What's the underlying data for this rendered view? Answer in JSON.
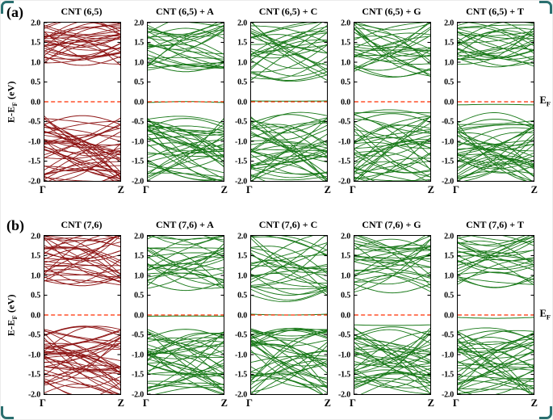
{
  "figure": {
    "row_a_label": "(a)",
    "row_b_label": "(b)",
    "y_axis_label": {
      "pre": "E-E",
      "sub": "F",
      "post": " (eV)"
    },
    "fermi_label": {
      "pre": "E",
      "sub": "F"
    },
    "colors": {
      "pristine": "#8e1414",
      "adsorbed": "#1a7a1a",
      "fermi": "#ff2d00",
      "axis": "#000000",
      "accent": "#2a6f6f"
    }
  },
  "chart_data": {
    "type": "line",
    "subtype": "electronic-band-structure",
    "x_tick_labels": [
      "Γ",
      "Z"
    ],
    "ylim": [
      -2.0,
      2.0
    ],
    "yticks": [
      2.0,
      1.5,
      1.0,
      0.5,
      0.0,
      -0.5,
      -1.0,
      -1.5,
      -2.0
    ],
    "ytick_labels": [
      "2.0",
      "1.5",
      "1.0",
      "0.5",
      "0.0",
      "-0.5",
      "-1.0",
      "-1.5",
      "-2.0"
    ],
    "fermi_energy": 0.0,
    "fermi_line_style": "dashed",
    "rows": [
      {
        "label": "(a)",
        "panels": [
          {
            "title": "CNT (6,5)",
            "variant": "pristine",
            "vbm": -0.35,
            "cbm": 0.92,
            "flat_bands": [],
            "valence_count": 42,
            "conduction_count": 30,
            "seed": 101
          },
          {
            "title": "CNT (6,5) + A",
            "variant": "adsorbed",
            "vbm": -0.42,
            "cbm": 0.76,
            "flat_bands": [
              -0.02
            ],
            "valence_count": 38,
            "conduction_count": 27,
            "seed": 102
          },
          {
            "title": "CNT (6,5) + C",
            "variant": "adsorbed",
            "vbm": -0.32,
            "cbm": 0.54,
            "flat_bands": [
              0.02
            ],
            "valence_count": 38,
            "conduction_count": 27,
            "seed": 103
          },
          {
            "title": "CNT (6,5) + G",
            "variant": "adsorbed",
            "vbm": -0.3,
            "cbm": 0.62,
            "flat_bands": [
              -0.28
            ],
            "valence_count": 38,
            "conduction_count": 27,
            "seed": 104
          },
          {
            "title": "CNT (6,5) + T",
            "variant": "adsorbed",
            "vbm": -0.44,
            "cbm": 0.88,
            "flat_bands": [
              -0.08
            ],
            "valence_count": 38,
            "conduction_count": 27,
            "seed": 105
          }
        ]
      },
      {
        "label": "(b)",
        "panels": [
          {
            "title": "CNT (7,6)",
            "variant": "pristine",
            "vbm": -0.3,
            "cbm": 0.74,
            "flat_bands": [],
            "valence_count": 42,
            "conduction_count": 30,
            "seed": 201
          },
          {
            "title": "CNT (7,6) + A",
            "variant": "adsorbed",
            "vbm": -0.36,
            "cbm": 0.62,
            "flat_bands": [
              -0.03
            ],
            "valence_count": 38,
            "conduction_count": 27,
            "seed": 202
          },
          {
            "title": "CNT (7,6) + C",
            "variant": "adsorbed",
            "vbm": -0.34,
            "cbm": 0.5,
            "flat_bands": [
              0.02
            ],
            "valence_count": 38,
            "conduction_count": 27,
            "seed": 203
          },
          {
            "title": "CNT (7,6) + G",
            "variant": "adsorbed",
            "vbm": -0.3,
            "cbm": 0.56,
            "flat_bands": [
              -0.25
            ],
            "valence_count": 38,
            "conduction_count": 27,
            "seed": 204
          },
          {
            "title": "CNT (7,6) + T",
            "variant": "adsorbed",
            "vbm": -0.4,
            "cbm": 0.7,
            "flat_bands": [
              -0.06
            ],
            "valence_count": 38,
            "conduction_count": 27,
            "seed": 205
          }
        ]
      }
    ]
  }
}
